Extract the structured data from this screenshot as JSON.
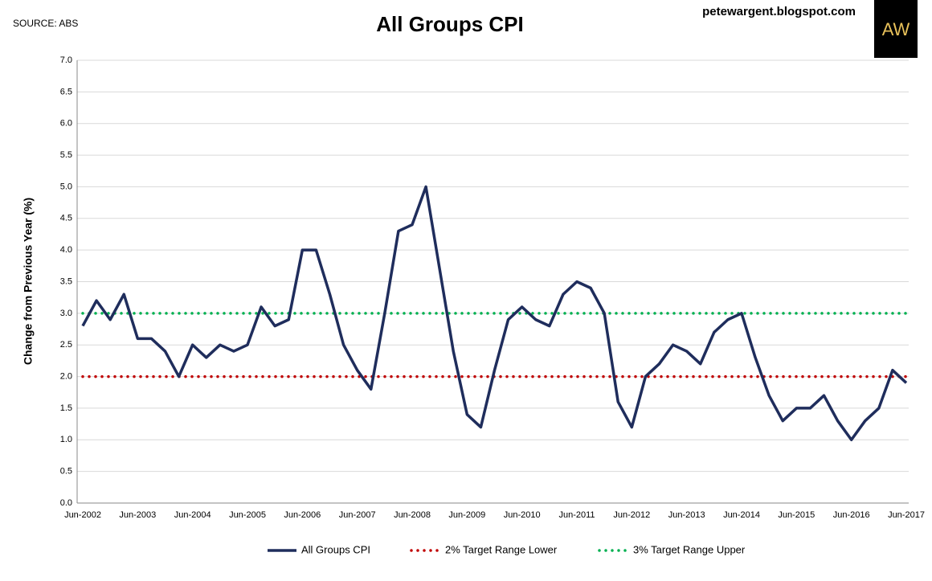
{
  "source": "SOURCE: ABS",
  "site": "petewargent.blogspot.com",
  "logo": "AW",
  "chart_data": {
    "type": "line",
    "title": "All Groups CPI",
    "y_label": "Change from Previous Year (%)",
    "categories": [
      "Jun-2002",
      null,
      null,
      null,
      "Jun-2003",
      null,
      null,
      null,
      "Jun-2004",
      null,
      null,
      null,
      "Jun-2005",
      null,
      null,
      null,
      "Jun-2006",
      null,
      null,
      null,
      "Jun-2007",
      null,
      null,
      null,
      "Jun-2008",
      null,
      null,
      null,
      "Jun-2009",
      null,
      null,
      null,
      "Jun-2010",
      null,
      null,
      null,
      "Jun-2011",
      null,
      null,
      null,
      "Jun-2012",
      null,
      null,
      null,
      "Jun-2013",
      null,
      null,
      null,
      "Jun-2014",
      null,
      null,
      null,
      "Jun-2015",
      null,
      null,
      null,
      "Jun-2016",
      null,
      null,
      null,
      "Jun-2017"
    ],
    "series": [
      {
        "name": "All Groups CPI",
        "color": "#1f2d5c",
        "style": "solid",
        "values": [
          2.8,
          3.2,
          2.9,
          3.3,
          2.6,
          2.6,
          2.4,
          2.0,
          2.5,
          2.3,
          2.5,
          2.4,
          2.5,
          3.1,
          2.8,
          2.9,
          4.0,
          4.0,
          3.3,
          2.5,
          2.1,
          1.8,
          3.0,
          4.3,
          4.4,
          5.0,
          3.7,
          2.4,
          1.4,
          1.2,
          2.1,
          2.9,
          3.1,
          2.9,
          2.8,
          3.3,
          3.5,
          3.4,
          3.0,
          1.6,
          1.2,
          2.0,
          2.2,
          2.5,
          2.4,
          2.2,
          2.7,
          2.9,
          3.0,
          2.3,
          1.7,
          1.3,
          1.5,
          1.5,
          1.7,
          1.3,
          1.0,
          1.3,
          1.5,
          2.1,
          1.9
        ]
      },
      {
        "name": "2% Target Range Lower",
        "color": "#c00000",
        "style": "dotted",
        "values": [
          2,
          2,
          2,
          2,
          2,
          2,
          2,
          2,
          2,
          2,
          2,
          2,
          2,
          2,
          2,
          2,
          2,
          2,
          2,
          2,
          2,
          2,
          2,
          2,
          2,
          2,
          2,
          2,
          2,
          2,
          2,
          2,
          2,
          2,
          2,
          2,
          2,
          2,
          2,
          2,
          2,
          2,
          2,
          2,
          2,
          2,
          2,
          2,
          2,
          2,
          2,
          2,
          2,
          2,
          2,
          2,
          2,
          2,
          2,
          2,
          2
        ]
      },
      {
        "name": "3% Target Range Upper",
        "color": "#00b050",
        "style": "dotted",
        "values": [
          3,
          3,
          3,
          3,
          3,
          3,
          3,
          3,
          3,
          3,
          3,
          3,
          3,
          3,
          3,
          3,
          3,
          3,
          3,
          3,
          3,
          3,
          3,
          3,
          3,
          3,
          3,
          3,
          3,
          3,
          3,
          3,
          3,
          3,
          3,
          3,
          3,
          3,
          3,
          3,
          3,
          3,
          3,
          3,
          3,
          3,
          3,
          3,
          3,
          3,
          3,
          3,
          3,
          3,
          3,
          3,
          3,
          3,
          3,
          3,
          3
        ]
      }
    ],
    "ylim": [
      0,
      7
    ],
    "yticks": [
      {
        "value": 0,
        "label": "0.0"
      },
      {
        "value": 0.5,
        "label": "0.5"
      },
      {
        "value": 1,
        "label": "1.0"
      },
      {
        "value": 1.5,
        "label": "1.5"
      },
      {
        "value": 2,
        "label": "2.0"
      },
      {
        "value": 2.5,
        "label": "2.5"
      },
      {
        "value": 3,
        "label": "3.0"
      },
      {
        "value": 3.5,
        "label": "3.5"
      },
      {
        "value": 4,
        "label": "4.0"
      },
      {
        "value": 4.5,
        "label": "4.5"
      },
      {
        "value": 5,
        "label": "5.0"
      },
      {
        "value": 5.5,
        "label": "5.5"
      },
      {
        "value": 6,
        "label": "6.0"
      },
      {
        "value": 6.5,
        "label": "6.5"
      },
      {
        "value": 7,
        "label": "7.0"
      }
    ],
    "grid": true,
    "legend": "bottom"
  }
}
